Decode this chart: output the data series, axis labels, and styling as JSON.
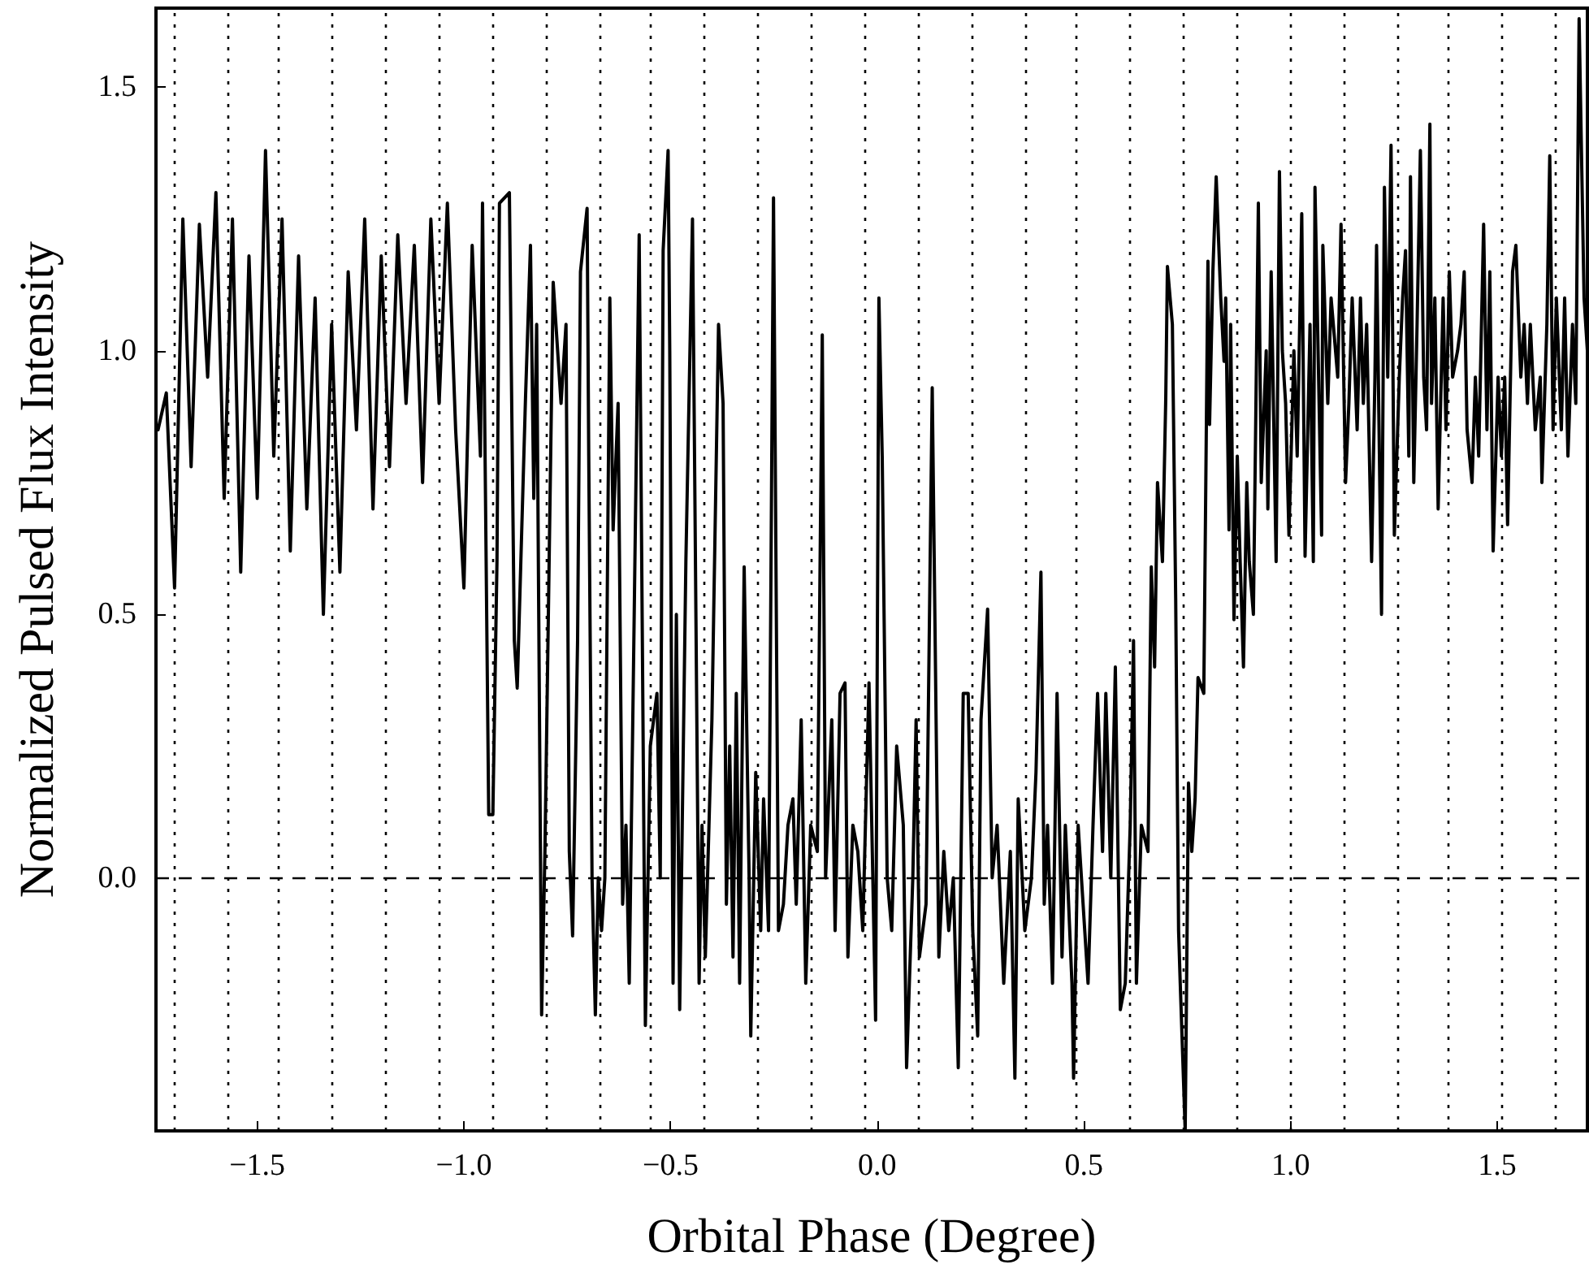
{
  "chart_data": {
    "type": "line",
    "xlabel": "Orbital Phase (Degree)",
    "ylabel": "Normalized Pulsed Flux Intensity",
    "xlim": [
      -1.745,
      1.718
    ],
    "ylim": [
      -0.48,
      1.65
    ],
    "xticks": [
      {
        "value": -1.5,
        "label": "−1.5"
      },
      {
        "value": -1.0,
        "label": "−1.0"
      },
      {
        "value": -0.5,
        "label": "−0.5"
      },
      {
        "value": 0,
        "label": "0.0"
      },
      {
        "value": 0.5,
        "label": "0.5"
      },
      {
        "value": 1.0,
        "label": "1.0"
      },
      {
        "value": 1.5,
        "label": "1.5"
      }
    ],
    "yticks": [
      {
        "value": 0,
        "label": "0.0"
      },
      {
        "value": 0.5,
        "label": "0.5"
      },
      {
        "value": 1.0,
        "label": "1.0"
      },
      {
        "value": 1.5,
        "label": "1.5"
      }
    ],
    "marker": "none",
    "line_style": "solid",
    "series": [
      {
        "color": "#000000",
        "x": [
          -1.74,
          -1.72,
          -1.7,
          -1.68,
          -1.66,
          -1.64,
          -1.62,
          -1.6,
          -1.58,
          -1.56,
          -1.54,
          -1.52,
          -1.5,
          -1.48,
          -1.46,
          -1.44,
          -1.42,
          -1.4,
          -1.38,
          -1.36,
          -1.34,
          -1.32,
          -1.3,
          -1.28,
          -1.26,
          -1.24,
          -1.22,
          -1.2,
          -1.18,
          -1.16,
          -1.14,
          -1.12,
          -1.1,
          -1.08,
          -1.06,
          -1.04,
          -1.02,
          -1.0,
          -0.98,
          -0.96,
          -0.955,
          -0.94,
          -0.93,
          -0.92,
          -0.914,
          -0.89,
          -0.878,
          -0.871,
          -0.851,
          -0.839,
          -0.831,
          -0.824,
          -0.812,
          -0.804,
          -0.784,
          -0.765,
          -0.753,
          -0.745,
          -0.737,
          -0.725,
          -0.718,
          -0.702,
          -0.698,
          -0.69,
          -0.682,
          -0.675,
          -0.667,
          -0.659,
          -0.647,
          -0.639,
          -0.627,
          -0.616,
          -0.608,
          -0.6,
          -0.588,
          -0.576,
          -0.561,
          -0.549,
          -0.533,
          -0.525,
          -0.518,
          -0.506,
          -0.502,
          -0.494,
          -0.486,
          -0.478,
          -0.463,
          -0.447,
          -0.431,
          -0.424,
          -0.416,
          -0.4,
          -0.384,
          -0.373,
          -0.365,
          -0.357,
          -0.349,
          -0.341,
          -0.333,
          -0.322,
          -0.31,
          -0.306,
          -0.294,
          -0.282,
          -0.275,
          -0.263,
          -0.251,
          -0.239,
          -0.227,
          -0.216,
          -0.204,
          -0.196,
          -0.184,
          -0.173,
          -0.161,
          -0.145,
          -0.133,
          -0.125,
          -0.11,
          -0.102,
          -0.09,
          -0.078,
          -0.071,
          -0.059,
          -0.047,
          -0.035,
          -0.02,
          -0.004,
          0.004,
          0.012,
          0.024,
          0.035,
          0.047,
          0.063,
          0.071,
          0.086,
          0.094,
          0.102,
          0.118,
          0.133,
          0.149,
          0.161,
          0.173,
          0.184,
          0.196,
          0.208,
          0.22,
          0.231,
          0.243,
          0.251,
          0.267,
          0.278,
          0.29,
          0.306,
          0.322,
          0.333,
          0.341,
          0.357,
          0.373,
          0.384,
          0.396,
          0.404,
          0.412,
          0.424,
          0.435,
          0.447,
          0.455,
          0.471,
          0.475,
          0.486,
          0.498,
          0.51,
          0.522,
          0.533,
          0.545,
          0.553,
          0.565,
          0.576,
          0.588,
          0.6,
          0.612,
          0.62,
          0.627,
          0.639,
          0.655,
          0.663,
          0.671,
          0.678,
          0.69,
          0.698,
          0.702,
          0.714,
          0.722,
          0.729,
          0.733,
          0.745,
          0.753,
          0.761,
          0.769,
          0.776,
          0.79,
          0.8,
          0.804,
          0.812,
          0.82,
          0.831,
          0.839,
          0.843,
          0.851,
          0.855,
          0.863,
          0.871,
          0.878,
          0.886,
          0.894,
          0.9,
          0.91,
          0.922,
          0.929,
          0.941,
          0.945,
          0.953,
          0.965,
          0.973,
          0.98,
          0.988,
          0.996,
          1.008,
          1.016,
          1.027,
          1.035,
          1.047,
          1.055,
          1.059,
          1.075,
          1.078,
          1.09,
          1.098,
          1.114,
          1.122,
          1.133,
          1.141,
          1.149,
          1.161,
          1.169,
          1.176,
          1.184,
          1.196,
          1.204,
          1.208,
          1.22,
          1.227,
          1.235,
          1.243,
          1.251,
          1.263,
          1.271,
          1.278,
          1.286,
          1.29,
          1.298,
          1.306,
          1.314,
          1.322,
          1.329,
          1.337,
          1.341,
          1.349,
          1.357,
          1.369,
          1.376,
          1.384,
          1.392,
          1.404,
          1.412,
          1.42,
          1.427,
          1.439,
          1.447,
          1.455,
          1.467,
          1.475,
          1.482,
          1.49,
          1.502,
          1.51,
          1.518,
          1.525,
          1.537,
          1.545,
          1.557,
          1.565,
          1.573,
          1.58,
          1.592,
          1.604,
          1.608,
          1.62,
          1.627,
          1.635,
          1.643,
          1.655,
          1.663,
          1.671,
          1.682,
          1.69,
          1.698,
          1.71,
          1.718
        ],
        "values": [
          0.85,
          0.92,
          0.55,
          1.25,
          0.78,
          1.24,
          0.95,
          1.3,
          0.72,
          1.25,
          0.58,
          1.18,
          0.72,
          1.38,
          0.8,
          1.25,
          0.62,
          1.18,
          0.7,
          1.1,
          0.5,
          1.05,
          0.58,
          1.15,
          0.85,
          1.25,
          0.7,
          1.18,
          0.78,
          1.22,
          0.9,
          1.2,
          0.75,
          1.25,
          0.9,
          1.28,
          0.85,
          0.55,
          1.2,
          0.8,
          1.28,
          0.12,
          0.12,
          0.6,
          1.28,
          1.3,
          0.45,
          0.36,
          0.91,
          1.2,
          0.72,
          1.05,
          -0.26,
          0.05,
          1.13,
          0.9,
          1.05,
          0.05,
          -0.11,
          0.45,
          1.15,
          1.27,
          0.8,
          0.0,
          -0.26,
          0.0,
          -0.1,
          0.0,
          1.1,
          0.66,
          0.9,
          -0.05,
          0.1,
          -0.2,
          0.5,
          1.22,
          -0.28,
          0.25,
          0.35,
          0.0,
          1.19,
          1.38,
          1.0,
          -0.2,
          0.5,
          -0.25,
          0.6,
          1.25,
          -0.2,
          0.1,
          -0.15,
          0.3,
          1.05,
          0.9,
          -0.05,
          0.25,
          -0.15,
          0.35,
          -0.2,
          0.59,
          0.0,
          -0.3,
          0.2,
          -0.1,
          0.15,
          -0.1,
          1.29,
          -0.1,
          -0.05,
          0.1,
          0.15,
          -0.05,
          0.3,
          -0.2,
          0.1,
          0.05,
          1.03,
          0.0,
          0.3,
          -0.1,
          0.35,
          0.37,
          -0.15,
          0.1,
          0.05,
          -0.1,
          0.37,
          -0.27,
          1.1,
          0.8,
          0.0,
          -0.1,
          0.25,
          0.1,
          -0.36,
          0.0,
          0.3,
          -0.15,
          -0.05,
          0.93,
          -0.15,
          0.05,
          -0.1,
          0.0,
          -0.36,
          0.35,
          0.35,
          -0.1,
          -0.3,
          0.3,
          0.51,
          0.0,
          0.1,
          -0.2,
          0.05,
          -0.38,
          0.15,
          -0.1,
          0.0,
          0.2,
          0.58,
          -0.05,
          0.1,
          -0.2,
          0.35,
          -0.15,
          0.1,
          -0.2,
          -0.38,
          0.1,
          -0.05,
          -0.2,
          0.1,
          0.35,
          0.05,
          0.35,
          0.0,
          0.4,
          -0.25,
          -0.2,
          0.1,
          0.45,
          -0.2,
          0.1,
          0.05,
          0.59,
          0.4,
          0.75,
          0.6,
          0.91,
          1.16,
          1.05,
          0.53,
          -0.1,
          -0.2,
          -0.48,
          0.18,
          0.05,
          0.15,
          0.38,
          0.35,
          1.17,
          0.86,
          1.15,
          1.33,
          1.1,
          0.98,
          1.1,
          0.66,
          1.05,
          0.49,
          0.8,
          0.6,
          0.4,
          0.75,
          0.6,
          0.5,
          1.28,
          0.75,
          1.0,
          0.7,
          1.15,
          0.6,
          1.34,
          1.0,
          0.9,
          0.65,
          1.0,
          0.8,
          1.26,
          0.61,
          1.05,
          0.6,
          1.31,
          0.65,
          1.2,
          0.9,
          1.1,
          0.95,
          1.24,
          0.75,
          0.9,
          1.1,
          0.85,
          1.1,
          0.9,
          1.05,
          0.6,
          0.95,
          1.2,
          0.5,
          1.31,
          0.95,
          1.39,
          0.65,
          0.95,
          1.1,
          1.19,
          0.8,
          1.33,
          0.75,
          1.05,
          1.38,
          0.95,
          0.85,
          1.43,
          0.9,
          1.1,
          0.7,
          1.1,
          0.85,
          1.15,
          0.95,
          1.0,
          1.05,
          1.15,
          0.85,
          0.75,
          0.95,
          0.8,
          1.24,
          0.85,
          1.15,
          0.62,
          0.95,
          0.8,
          0.95,
          0.67,
          1.15,
          1.2,
          0.95,
          1.05,
          0.9,
          1.05,
          0.85,
          0.95,
          0.75,
          1.05,
          1.37,
          0.85,
          1.1,
          0.85,
          1.1,
          0.8,
          1.05,
          0.9,
          1.63,
          1.1,
          1.0
        ]
      }
    ],
    "ref_lines": [
      {
        "axis": "y",
        "value": 0,
        "line_style": "dashed",
        "color": "#000000"
      },
      {
        "axis": "x",
        "value": -1.702,
        "line_style": "dotted",
        "color": "#000000"
      },
      {
        "axis": "x",
        "value": -1.573,
        "line_style": "dotted",
        "color": "#000000"
      },
      {
        "axis": "x",
        "value": -1.445,
        "line_style": "dotted",
        "color": "#000000"
      },
      {
        "axis": "x",
        "value": -1.316,
        "line_style": "dotted",
        "color": "#000000"
      },
      {
        "axis": "x",
        "value": -1.188,
        "line_style": "dotted",
        "color": "#000000"
      },
      {
        "axis": "x",
        "value": -1.059,
        "line_style": "dotted",
        "color": "#000000"
      },
      {
        "axis": "x",
        "value": -0.93,
        "line_style": "dotted",
        "color": "#000000"
      },
      {
        "axis": "x",
        "value": -0.802,
        "line_style": "dotted",
        "color": "#000000"
      },
      {
        "axis": "x",
        "value": -0.673,
        "line_style": "dotted",
        "color": "#000000"
      },
      {
        "axis": "x",
        "value": -0.545,
        "line_style": "dotted",
        "color": "#000000"
      },
      {
        "axis": "x",
        "value": -0.416,
        "line_style": "dotted",
        "color": "#000000"
      },
      {
        "axis": "x",
        "value": -0.287,
        "line_style": "dotted",
        "color": "#000000"
      },
      {
        "axis": "x",
        "value": -0.159,
        "line_style": "dotted",
        "color": "#000000"
      },
      {
        "axis": "x",
        "value": -0.03,
        "line_style": "dotted",
        "color": "#000000"
      },
      {
        "axis": "x",
        "value": 0.098,
        "line_style": "dotted",
        "color": "#000000"
      },
      {
        "axis": "x",
        "value": 0.227,
        "line_style": "dotted",
        "color": "#000000"
      },
      {
        "axis": "x",
        "value": 0.356,
        "line_style": "dotted",
        "color": "#000000"
      },
      {
        "axis": "x",
        "value": 0.484,
        "line_style": "dotted",
        "color": "#000000"
      },
      {
        "axis": "x",
        "value": 0.613,
        "line_style": "dotted",
        "color": "#000000"
      },
      {
        "axis": "x",
        "value": 0.741,
        "line_style": "dotted",
        "color": "#000000"
      },
      {
        "axis": "x",
        "value": 0.87,
        "line_style": "dotted",
        "color": "#000000"
      },
      {
        "axis": "x",
        "value": 0.999,
        "line_style": "dotted",
        "color": "#000000"
      },
      {
        "axis": "x",
        "value": 1.127,
        "line_style": "dotted",
        "color": "#000000"
      },
      {
        "axis": "x",
        "value": 1.256,
        "line_style": "dotted",
        "color": "#000000"
      },
      {
        "axis": "x",
        "value": 1.384,
        "line_style": "dotted",
        "color": "#000000"
      },
      {
        "axis": "x",
        "value": 1.513,
        "line_style": "dotted",
        "color": "#000000"
      },
      {
        "axis": "x",
        "value": 1.642,
        "line_style": "dotted",
        "color": "#000000"
      }
    ]
  }
}
